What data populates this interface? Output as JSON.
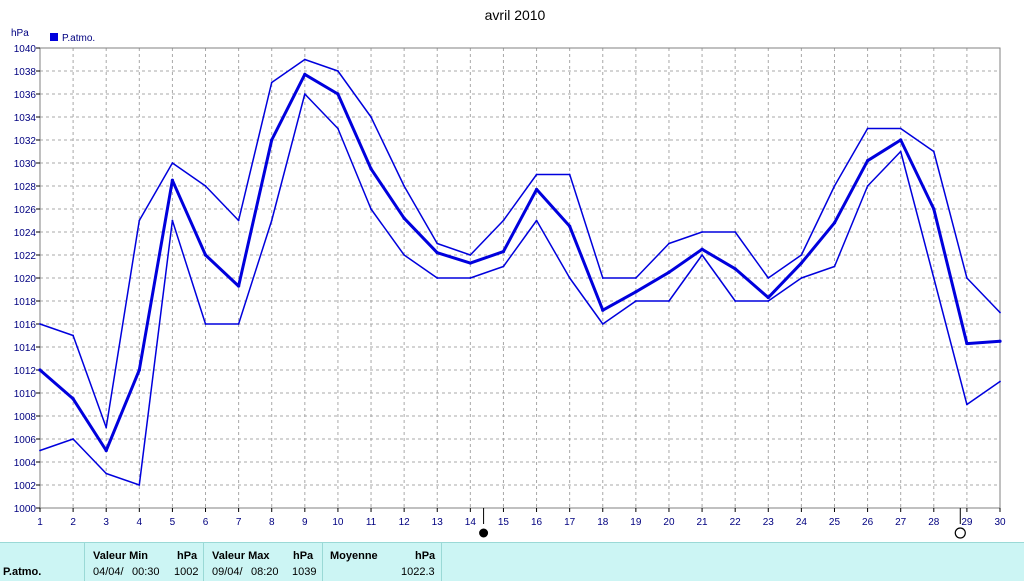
{
  "chart_data": {
    "type": "line",
    "title": "avril 2010",
    "ylabel": "hPa",
    "legend": "P.atmo.",
    "legend_position": "top-left",
    "grid": true,
    "ylim": [
      1000,
      1040
    ],
    "xlim": [
      1,
      30
    ],
    "x": [
      1,
      2,
      3,
      4,
      5,
      6,
      7,
      8,
      9,
      10,
      11,
      12,
      13,
      14,
      15,
      16,
      17,
      18,
      19,
      20,
      21,
      22,
      23,
      24,
      25,
      26,
      27,
      28,
      29,
      30
    ],
    "x_ticks": [
      1,
      2,
      3,
      4,
      5,
      6,
      7,
      8,
      9,
      10,
      11,
      12,
      13,
      14,
      15,
      16,
      17,
      18,
      19,
      20,
      21,
      22,
      23,
      24,
      25,
      26,
      27,
      28,
      29,
      30
    ],
    "y_ticks": [
      1000,
      1002,
      1004,
      1006,
      1008,
      1010,
      1012,
      1014,
      1016,
      1018,
      1020,
      1022,
      1024,
      1026,
      1028,
      1030,
      1032,
      1034,
      1036,
      1038,
      1040
    ],
    "series": [
      {
        "role": "max",
        "values": [
          1016,
          1015,
          1007,
          1025,
          1030,
          1028,
          1025,
          1037,
          1039,
          1038,
          1034,
          1028,
          1023,
          1022,
          1025,
          1029,
          1029,
          1020,
          1020,
          1023,
          1024,
          1024,
          1020,
          1022,
          1028,
          1033,
          1033,
          1031,
          1020,
          1017
        ]
      },
      {
        "role": "mean",
        "values": [
          1012,
          1009.5,
          1005,
          1012,
          1028.5,
          1022,
          1019.3,
          1032,
          1037.7,
          1036,
          1029.5,
          1025.2,
          1022.2,
          1021.3,
          1022.3,
          1027.7,
          1024.5,
          1017.2,
          1018.8,
          1020.5,
          1022.5,
          1020.8,
          1018.3,
          1021.3,
          1024.8,
          1030.2,
          1032,
          1026,
          1014.3,
          1014.5
        ]
      },
      {
        "role": "min",
        "values": [
          1005,
          1006,
          1003,
          1002,
          1025,
          1016,
          1016,
          1025,
          1036,
          1033,
          1026,
          1022,
          1020,
          1020,
          1021,
          1025,
          1020,
          1016,
          1018,
          1018,
          1022,
          1018,
          1018,
          1020,
          1021,
          1028,
          1031,
          1020,
          1009,
          1011
        ]
      }
    ],
    "line_color": "#0000dd",
    "moon_phases": [
      {
        "phase": "full",
        "x": 14.4
      },
      {
        "phase": "new",
        "x": 28.8
      }
    ]
  },
  "stats": {
    "row_label": "P.atmo.",
    "min_header": "Valeur Min",
    "min_unit": "hPa",
    "min_date": "04/04/",
    "min_time": "00:30",
    "min_value": "1002",
    "max_header": "Valeur Max",
    "max_unit": "hPa",
    "max_date": "09/04/",
    "max_time": "08:20",
    "max_value": "1039",
    "mean_header": "Moyenne",
    "mean_unit": "hPa",
    "mean_value": "1022.3"
  }
}
